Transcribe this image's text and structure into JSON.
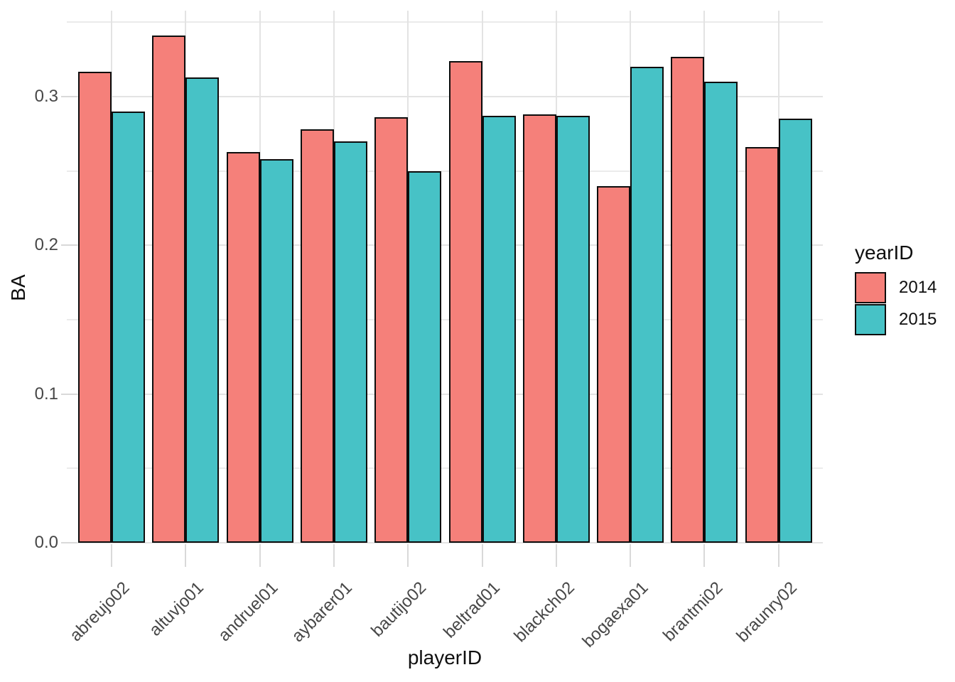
{
  "chart_data": {
    "type": "bar",
    "title": "",
    "xlabel": "playerID",
    "ylabel": "BA",
    "categories": [
      "abreujo02",
      "altuvjo01",
      "andruel01",
      "aybarer01",
      "bautijo02",
      "beltrad01",
      "blackch02",
      "bogaexa01",
      "brantmi02",
      "braunry02"
    ],
    "series": [
      {
        "name": "2014",
        "color": "#F5807A",
        "values": [
          0.317,
          0.341,
          0.263,
          0.278,
          0.286,
          0.324,
          0.288,
          0.24,
          0.327,
          0.266
        ]
      },
      {
        "name": "2015",
        "color": "#47C2C6",
        "values": [
          0.29,
          0.313,
          0.258,
          0.27,
          0.25,
          0.287,
          0.287,
          0.32,
          0.31,
          0.285
        ]
      }
    ],
    "ylim": [
      0,
      0.358
    ],
    "y_ticks": [
      {
        "label": "0.0",
        "value": 0.0
      },
      {
        "label": "0.1",
        "value": 0.1
      },
      {
        "label": "0.2",
        "value": 0.2
      },
      {
        "label": "0.3",
        "value": 0.3
      }
    ],
    "y_minor": [
      0.05,
      0.15,
      0.25,
      0.35
    ],
    "grid": true,
    "legend_position": "right",
    "legend_title": "yearID",
    "bar_outline": "#0d0d0d",
    "background": "#ffffff"
  }
}
